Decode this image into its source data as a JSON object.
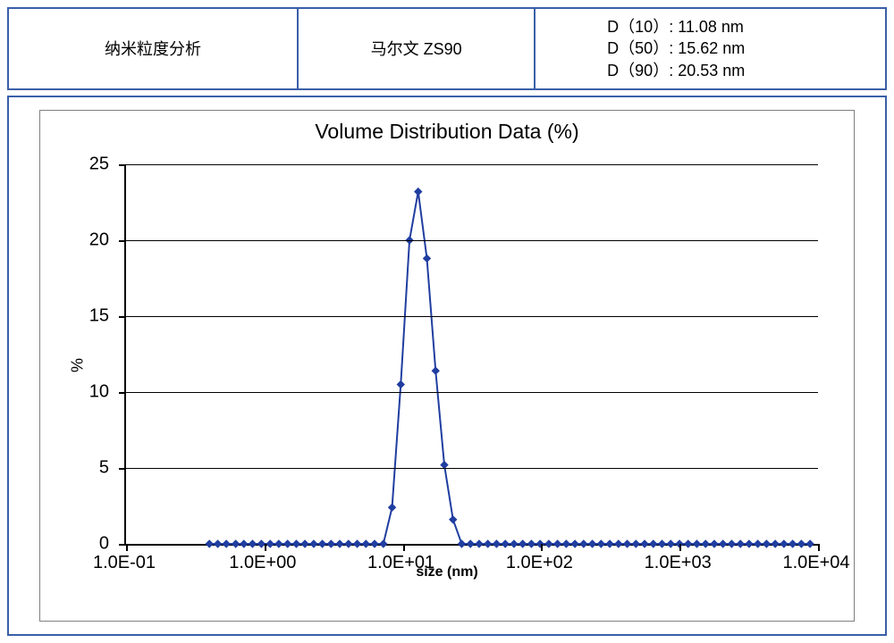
{
  "info_table": {
    "col1": "纳米粒度分析",
    "col2": "马尔文 ZS90",
    "results": {
      "d10": "D（10）: 11.08 nm",
      "d50": "D（50）: 15.62 nm",
      "d90": "D（90）: 20.53 nm"
    }
  },
  "chart": {
    "type": "line",
    "title": "Volume Distribution Data (%)",
    "title_fontsize": 23,
    "x_axis_title": "size (nm)",
    "y_axis_title": "%",
    "background_color": "#ffffff",
    "panel_border_color": "#3a5fa8",
    "inner_border_color": "#808080",
    "axis_color": "#000000",
    "grid_color": "#000000",
    "line_color": "#203ea0",
    "marker_color": "#203ea0",
    "line_width": 2,
    "marker_shape": "diamond",
    "marker_size": 8,
    "x_scale": "log",
    "xlim": [
      0.1,
      10000
    ],
    "x_ticks": [
      0.1,
      1,
      10,
      100,
      1000,
      10000
    ],
    "x_tick_labels": [
      "1.0E-01",
      "1.0E+00",
      "1.0E+01",
      "1.0E+02",
      "1.0E+03",
      "1.0E+04"
    ],
    "ylim": [
      0,
      25
    ],
    "y_ticks": [
      0,
      5,
      10,
      15,
      20,
      25
    ],
    "y_tick_labels": [
      "0",
      "5",
      "10",
      "15",
      "20",
      "25"
    ],
    "data": [
      {
        "x": 0.4,
        "y": 0
      },
      {
        "x": 0.46,
        "y": 0
      },
      {
        "x": 0.53,
        "y": 0
      },
      {
        "x": 0.62,
        "y": 0
      },
      {
        "x": 0.71,
        "y": 0
      },
      {
        "x": 0.82,
        "y": 0
      },
      {
        "x": 0.95,
        "y": 0
      },
      {
        "x": 1.1,
        "y": 0
      },
      {
        "x": 1.27,
        "y": 0
      },
      {
        "x": 1.47,
        "y": 0
      },
      {
        "x": 1.7,
        "y": 0
      },
      {
        "x": 1.96,
        "y": 0
      },
      {
        "x": 2.27,
        "y": 0
      },
      {
        "x": 2.62,
        "y": 0
      },
      {
        "x": 3.03,
        "y": 0
      },
      {
        "x": 3.5,
        "y": 0
      },
      {
        "x": 4.05,
        "y": 0
      },
      {
        "x": 4.68,
        "y": 0
      },
      {
        "x": 5.41,
        "y": 0
      },
      {
        "x": 6.25,
        "y": 0
      },
      {
        "x": 7.23,
        "y": 0
      },
      {
        "x": 8.36,
        "y": 2.4
      },
      {
        "x": 9.66,
        "y": 10.5
      },
      {
        "x": 11.17,
        "y": 20.0
      },
      {
        "x": 12.91,
        "y": 23.2
      },
      {
        "x": 14.92,
        "y": 18.8
      },
      {
        "x": 17.25,
        "y": 11.4
      },
      {
        "x": 19.94,
        "y": 5.2
      },
      {
        "x": 23.05,
        "y": 1.6
      },
      {
        "x": 26.64,
        "y": 0
      },
      {
        "x": 30.8,
        "y": 0
      },
      {
        "x": 35.6,
        "y": 0
      },
      {
        "x": 41.15,
        "y": 0
      },
      {
        "x": 47.57,
        "y": 0
      },
      {
        "x": 54.98,
        "y": 0
      },
      {
        "x": 63.56,
        "y": 0
      },
      {
        "x": 73.47,
        "y": 0
      },
      {
        "x": 84.92,
        "y": 0
      },
      {
        "x": 98.16,
        "y": 0
      },
      {
        "x": 113.5,
        "y": 0
      },
      {
        "x": 131.1,
        "y": 0
      },
      {
        "x": 151.6,
        "y": 0
      },
      {
        "x": 175.2,
        "y": 0
      },
      {
        "x": 202.5,
        "y": 0
      },
      {
        "x": 234.1,
        "y": 0
      },
      {
        "x": 270.6,
        "y": 0
      },
      {
        "x": 312.8,
        "y": 0
      },
      {
        "x": 361.6,
        "y": 0
      },
      {
        "x": 418.0,
        "y": 0
      },
      {
        "x": 483.1,
        "y": 0
      },
      {
        "x": 558.5,
        "y": 0
      },
      {
        "x": 645.5,
        "y": 0
      },
      {
        "x": 746.2,
        "y": 0
      },
      {
        "x": 862.5,
        "y": 0
      },
      {
        "x": 997.0,
        "y": 0
      },
      {
        "x": 1152,
        "y": 0
      },
      {
        "x": 1332,
        "y": 0
      },
      {
        "x": 1540,
        "y": 0
      },
      {
        "x": 1780,
        "y": 0
      },
      {
        "x": 2057,
        "y": 0
      },
      {
        "x": 2378,
        "y": 0
      },
      {
        "x": 2749,
        "y": 0
      },
      {
        "x": 3177,
        "y": 0
      },
      {
        "x": 3673,
        "y": 0
      },
      {
        "x": 4245,
        "y": 0
      },
      {
        "x": 4907,
        "y": 0
      },
      {
        "x": 5672,
        "y": 0
      },
      {
        "x": 6557,
        "y": 0
      },
      {
        "x": 7579,
        "y": 0
      },
      {
        "x": 8761,
        "y": 0
      }
    ]
  }
}
